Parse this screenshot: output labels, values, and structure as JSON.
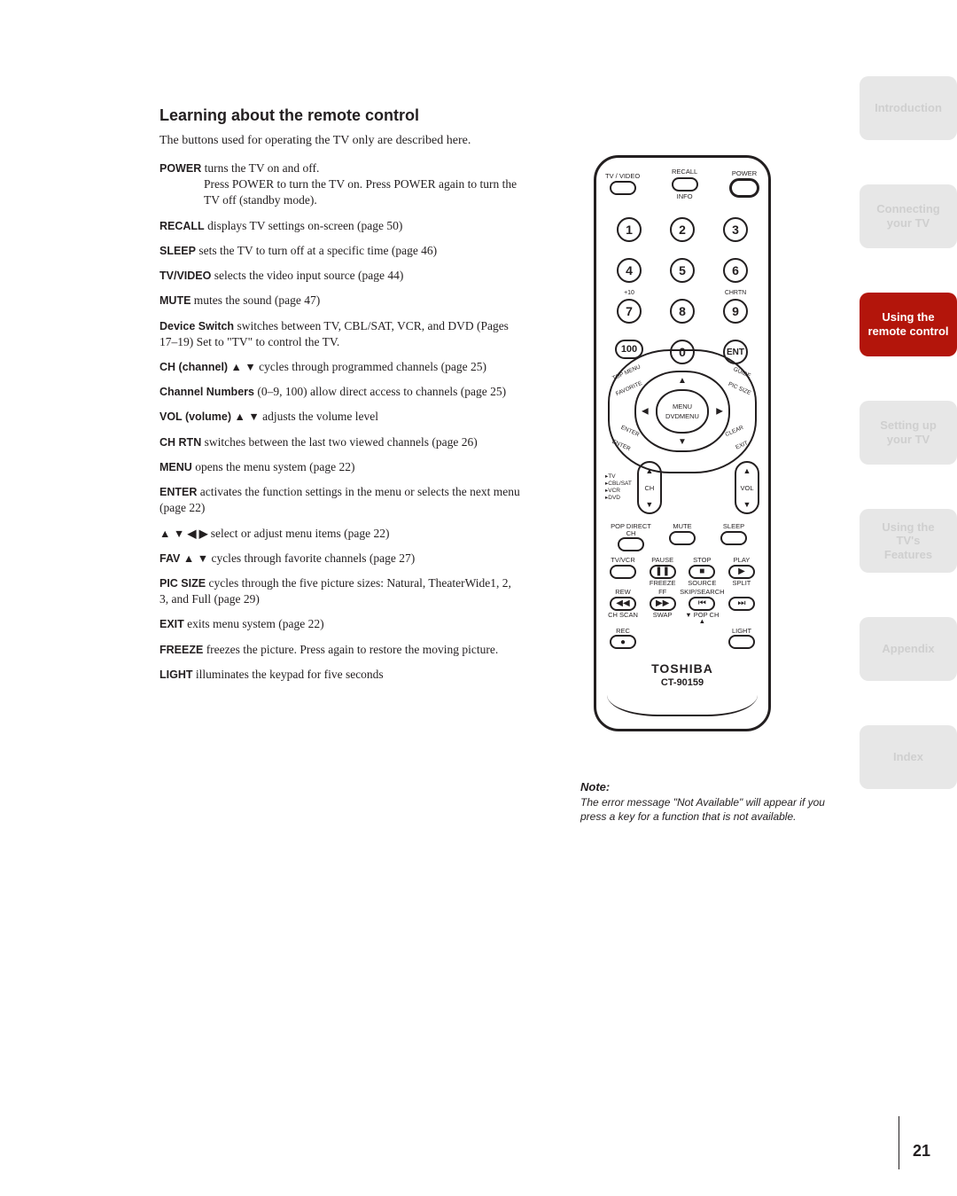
{
  "heading": "Learning about the remote control",
  "intro": "The buttons used for operating the TV only are described here.",
  "entries": [
    {
      "bold": "POWER",
      "text": " turns the TV on and off.",
      "hang": "Press POWER to turn the TV on. Press POWER again to turn the TV off (standby mode)."
    },
    {
      "bold": "RECALL",
      "text": " displays TV settings on-screen (page 50)"
    },
    {
      "bold": "SLEEP",
      "text": " sets the TV to turn off at a specific time (page 46)"
    },
    {
      "bold": "TV/VIDEO",
      "text": "  selects the video input source (page 44)"
    },
    {
      "bold": "MUTE",
      "text": " mutes the sound (page 47)"
    },
    {
      "bold": "Device Switch",
      "text": " switches between TV, CBL/SAT, VCR, and DVD (Pages 17–19) Set to \"TV\" to control the TV.",
      "hangStart": true
    },
    {
      "bold": "CH (channel) ▲ ▼",
      "text": " cycles through programmed channels (page 25)"
    },
    {
      "bold": "Channel Numbers",
      "text": " (0–9, 100) allow direct access to channels (page 25)"
    },
    {
      "bold": "VOL (volume) ▲ ▼",
      "text": " adjusts the volume level"
    },
    {
      "bold": "CH RTN",
      "text": " switches between the last two viewed channels (page 26)"
    },
    {
      "bold": "MENU",
      "text": " opens the menu system (page 22)"
    },
    {
      "bold": "ENTER",
      "text": " activates the function settings in the menu or selects the next menu (page 22)",
      "hangNarrow": true
    },
    {
      "bold": "▲ ▼ ◀ ▶",
      "text": " select or adjust menu items (page 22)",
      "boldIsArrows": true
    },
    {
      "bold": "FAV ▲ ▼",
      "text": " cycles through favorite channels (page 27)"
    },
    {
      "bold": "PIC SIZE",
      "text": "  cycles through the five picture sizes: Natural, TheaterWide1, 2, 3, and Full (page 29)",
      "hangNarrow": true
    },
    {
      "bold": "EXIT",
      "text": " exits menu system (page 22)"
    },
    {
      "bold": "FREEZE",
      "text": " freezes the picture. Press again to restore the moving picture."
    },
    {
      "bold": "LIGHT",
      "text": " illuminates the keypad for five seconds"
    }
  ],
  "tabs": [
    {
      "label": "Introduction",
      "active": false
    },
    {
      "label": "Connecting your TV",
      "active": false
    },
    {
      "label": "Using the remote control",
      "active": true
    },
    {
      "label": "Setting up your TV",
      "active": false
    },
    {
      "label": "Using the TV's Features",
      "active": false
    },
    {
      "label": "Appendix",
      "active": false
    },
    {
      "label": "Index",
      "active": false
    }
  ],
  "remote": {
    "topRow": {
      "left": "TV / VIDEO",
      "middle_top": "RECALL",
      "middle_bottom": "INFO",
      "right": "POWER"
    },
    "numbers": [
      "1",
      "2",
      "3",
      "4",
      "5",
      "6",
      "7",
      "8",
      "9"
    ],
    "plus10": "+10",
    "chrtn": "CHRTN",
    "hundred": "100",
    "zero": "0",
    "ent": "ENT",
    "nav": {
      "tl": "TOP MENU",
      "tl2": "FAVORITE",
      "tr": "GUIDE",
      "tr2": "PIC SIZE",
      "bl": "ENTER",
      "bl2": "ENTER",
      "br": "EXIT",
      "br2": "CLEAR",
      "top": "FAV▲",
      "bottom": "FAV▼",
      "center1": "MENU",
      "center2": "DVDMENU"
    },
    "device": {
      "lines": [
        "TV",
        "CBL/SAT",
        "VCR",
        "DVD"
      ],
      "ch": "CH",
      "vol": "VOL"
    },
    "bottomPills": {
      "l": "POP DIRECT CH",
      "m": "MUTE",
      "r": "SLEEP"
    },
    "playRow1": [
      {
        "top": "TV/VCR",
        "sym": "",
        "bottom": ""
      },
      {
        "top": "PAUSE",
        "sym": "❚❚",
        "bottom": "FREEZE"
      },
      {
        "top": "STOP",
        "sym": "■",
        "bottom": "SOURCE"
      },
      {
        "top": "PLAY",
        "sym": "▶",
        "bottom": "SPLIT"
      }
    ],
    "playRow2": [
      {
        "top": "REW",
        "sym": "◀◀",
        "bottom": "CH SCAN"
      },
      {
        "top": "FF",
        "sym": "▶▶",
        "bottom": "SWAP"
      },
      {
        "top": "SKIP/SEARCH",
        "sym": "⏮",
        "bottom": "▼ POP CH ▲",
        "narrow": true
      },
      {
        "top": "",
        "sym": "⏭",
        "bottom": ""
      }
    ],
    "recRow": {
      "left_top": "REC",
      "left_sym": "●",
      "right_top": "LIGHT"
    },
    "brand": "TOSHIBA",
    "model": "CT-90159"
  },
  "note": {
    "title": "Note:",
    "body": "The error message \"Not Available\" will appear if you press a key for a function that is not available."
  },
  "pageNumber": "21",
  "colors": {
    "accent": "#b3150b",
    "faded_bg": "#e7e7e7",
    "faded_fg": "#cfcfcf",
    "text": "#231f20"
  }
}
